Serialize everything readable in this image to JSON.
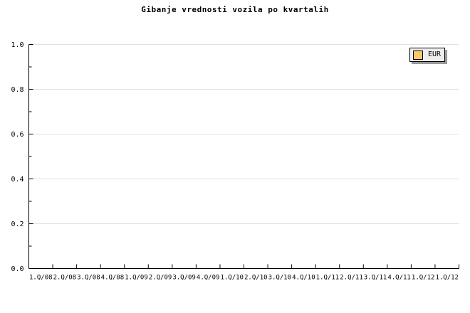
{
  "chart_data": {
    "type": "line",
    "title": "Gibanje vrednosti vozila po kvartalih",
    "x_categories": [
      "1.Q/08",
      "2.Q/08",
      "3.Q/08",
      "4.Q/08",
      "1.Q/09",
      "2.Q/09",
      "3.Q/09",
      "4.Q/09",
      "1.Q/10",
      "2.Q/10",
      "3.Q/10",
      "4.Q/10",
      "1.Q/11",
      "2.Q/11",
      "3.Q/11",
      "4.Q/11",
      "1.Q/12",
      "1.Q/12"
    ],
    "xlabel": "",
    "ylabel": "",
    "ylim": [
      0.0,
      1.0
    ],
    "y_major_ticks": [
      0.0,
      0.2,
      0.4,
      0.6,
      0.8,
      1.0
    ],
    "y_tick_labels": [
      "0.0",
      "0.2",
      "0.4",
      "0.6",
      "0.8",
      "1.0"
    ],
    "y_minor_ticks": [
      0.1,
      0.3,
      0.5,
      0.7,
      0.9
    ],
    "grid": "horizontal-major",
    "legend_position": "top-right",
    "series": [
      {
        "name": "EUR",
        "color": "#F9C869",
        "values": []
      }
    ]
  },
  "legend": {
    "items": [
      {
        "label": "EUR",
        "swatch_color": "#F9C869"
      }
    ]
  },
  "colors": {
    "background": "#ffffff",
    "axis": "#000000",
    "grid": "#e0e0e0",
    "text": "#000000",
    "legend_background": "#eeeeee",
    "legend_border": "#000000",
    "legend_shadow": "#999999"
  }
}
